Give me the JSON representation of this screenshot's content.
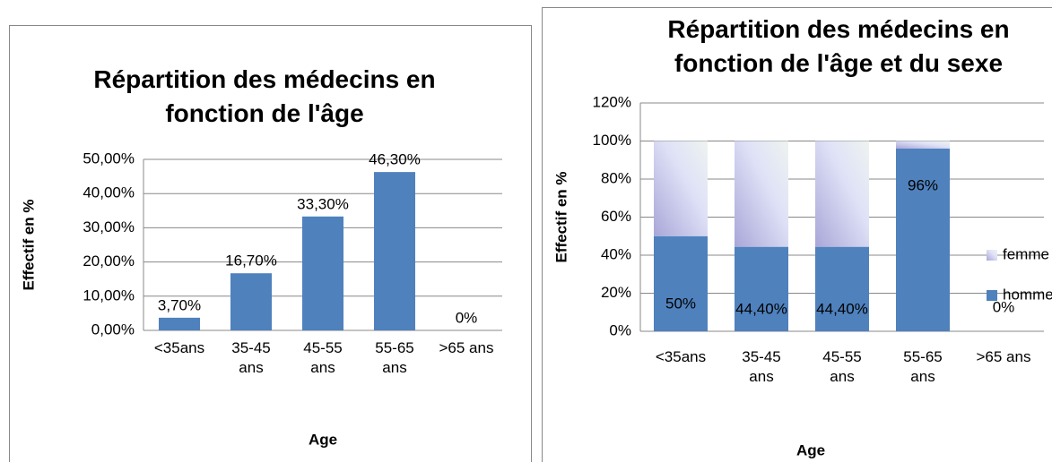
{
  "chart_data": [
    {
      "type": "bar",
      "title": "Répartition des médecins en fonction de l'âge",
      "xlabel": "Age",
      "ylabel": "Effectif en %",
      "categories": [
        "<35ans",
        "35-45 ans",
        "45-55 ans",
        "55-65 ans",
        ">65 ans"
      ],
      "values": [
        3.7,
        16.7,
        33.3,
        46.3,
        0
      ],
      "value_labels": [
        "3,70%",
        "16,70%",
        "33,30%",
        "46,30%",
        "0%"
      ],
      "color": "#4f81bd",
      "ylim": [
        0,
        50
      ],
      "yticks": [
        {
          "value": 0,
          "label": "0,00%"
        },
        {
          "value": 10,
          "label": "10,00%"
        },
        {
          "value": 20,
          "label": "20,00%"
        },
        {
          "value": 30,
          "label": "30,00%"
        },
        {
          "value": 40,
          "label": "40,00%"
        },
        {
          "value": 50,
          "label": "50,00%"
        }
      ],
      "grid": true
    },
    {
      "type": "stacked_bar",
      "title": "Répartition des médecins en fonction de l'âge et du sexe",
      "xlabel": "Age",
      "ylabel": "Effectif en %",
      "categories": [
        "<35ans",
        "35-45 ans",
        "45-55 ans",
        "55-65 ans",
        ">65 ans"
      ],
      "series": [
        {
          "name": "homme",
          "color": "#4f81bd",
          "values": [
            50,
            44.4,
            44.4,
            96,
            0
          ],
          "value_labels": [
            "50%",
            "44,40%",
            "44,40%",
            "96%",
            "0%"
          ]
        },
        {
          "name": "femme",
          "color": "#c6cbef",
          "values": [
            50,
            55.6,
            55.6,
            4,
            0
          ]
        }
      ],
      "ylim": [
        0,
        120
      ],
      "yticks": [
        {
          "value": 0,
          "label": "0%"
        },
        {
          "value": 20,
          "label": "20%"
        },
        {
          "value": 40,
          "label": "40%"
        },
        {
          "value": 60,
          "label": "60%"
        },
        {
          "value": 80,
          "label": "80%"
        },
        {
          "value": 100,
          "label": "100%"
        },
        {
          "value": 120,
          "label": "120%"
        }
      ],
      "grid": true,
      "legend": "right"
    }
  ]
}
